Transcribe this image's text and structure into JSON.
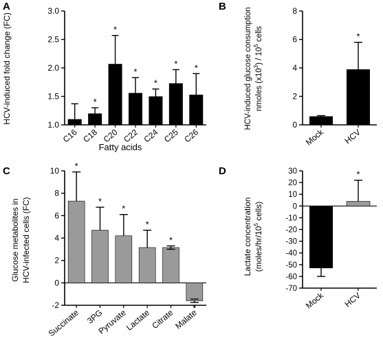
{
  "colors": {
    "black_bar": "#000000",
    "gray_bar": "#9a9a9a",
    "axis": "#000000"
  },
  "chart_data": [
    {
      "panel": "A",
      "type": "bar",
      "categories": [
        "C16",
        "C18",
        "C20",
        "C22",
        "C24",
        "C25",
        "C26"
      ],
      "values": [
        1.1,
        1.2,
        2.07,
        1.56,
        1.5,
        1.73,
        1.53
      ],
      "errors": [
        0.27,
        0.1,
        0.5,
        0.27,
        0.13,
        0.24,
        0.37
      ],
      "stars": [
        false,
        true,
        true,
        true,
        true,
        true,
        true
      ],
      "star_symbol": "*",
      "ylim": [
        1.0,
        3.0
      ],
      "yticks": [
        "1.0",
        "1.5",
        "2.0",
        "2.5",
        "3.0"
      ],
      "ytick_values": [
        1.0,
        1.5,
        2.0,
        2.5,
        3.0
      ],
      "xlabel": "Fatty acids",
      "ylabel": "HCV-induced fold change (FC)",
      "bar_color": "#000000"
    },
    {
      "panel": "B",
      "type": "bar",
      "categories": [
        "Mock",
        "HCV"
      ],
      "values": [
        0.6,
        3.9
      ],
      "errors": [
        0.05,
        1.9
      ],
      "stars": [
        false,
        true
      ],
      "star_symbol": "*",
      "ylim": [
        0,
        8
      ],
      "yticks": [
        "0",
        "2",
        "4",
        "6",
        "8"
      ],
      "ytick_values": [
        0,
        2,
        4,
        6,
        8
      ],
      "xlabel": "",
      "ylabel_line1": "HCV-induced glucose consumption",
      "ylabel_line2_pre": "nmoles (x10",
      "ylabel_line2_sup1": "3",
      "ylabel_line2_mid": ") / 10",
      "ylabel_line2_sup2": "5",
      "ylabel_line2_post": " cells",
      "bar_color": "#000000"
    },
    {
      "panel": "C",
      "type": "bar",
      "categories": [
        "Succinate",
        "3PG",
        "Pyruvate",
        "Lactate",
        "Citrate",
        "Malate"
      ],
      "values": [
        7.3,
        4.7,
        4.2,
        3.15,
        3.15,
        -1.6
      ],
      "errors": [
        2.6,
        2.05,
        1.9,
        1.55,
        0.15,
        0.15
      ],
      "stars": [
        true,
        true,
        true,
        true,
        true,
        true
      ],
      "star_symbol": "*",
      "ylim": [
        -2,
        10
      ],
      "yticks": [
        "-2",
        "0",
        "2",
        "4",
        "6",
        "8",
        "10"
      ],
      "ytick_values": [
        -2,
        0,
        2,
        4,
        6,
        8,
        10
      ],
      "xlabel": "",
      "ylabel_line1": "Glucose metabolites in",
      "ylabel_line2": "HCV-infected cells (FC)",
      "bar_color": "#9a9a9a"
    },
    {
      "panel": "D",
      "type": "bar",
      "categories": [
        "Mock",
        "HCV"
      ],
      "values": [
        -53,
        4
      ],
      "errors": [
        7,
        18
      ],
      "stars": [
        false,
        true
      ],
      "star_symbol": "*",
      "ylim": [
        -70,
        30
      ],
      "yticks": [
        "-70",
        "-60",
        "-50",
        "-40",
        "-30",
        "-20",
        "-10",
        "0",
        "10",
        "20",
        "30"
      ],
      "ytick_values": [
        -70,
        -60,
        -50,
        -40,
        -30,
        -20,
        -10,
        0,
        10,
        20,
        30
      ],
      "xlabel": "",
      "ylabel_line1": "Lactate concentration",
      "ylabel_line2_pre": "(moles/hr/10",
      "ylabel_line2_sup": "5",
      "ylabel_line2_post": " cells)",
      "bar_colors": [
        "#000000",
        "#9a9a9a"
      ]
    }
  ]
}
